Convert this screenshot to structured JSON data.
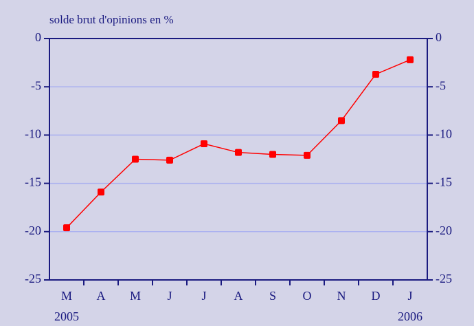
{
  "chart_data": {
    "type": "line",
    "y_label": "solde brut d'opinions en %",
    "categories": [
      "M",
      "A",
      "M",
      "J",
      "J",
      "A",
      "S",
      "O",
      "N",
      "D",
      "J"
    ],
    "year_labels": [
      "2005",
      "2006"
    ],
    "series": [
      {
        "name": "solde brut d'opinions",
        "color": "#ff0000",
        "values": [
          -19.6,
          -15.9,
          -12.5,
          -12.6,
          -10.9,
          -11.8,
          -12.0,
          -12.1,
          -8.5,
          -3.7,
          -2.2
        ]
      }
    ],
    "ylim": [
      -25,
      0
    ],
    "yticks": [
      -25,
      -20,
      -15,
      -10,
      -5,
      0
    ],
    "y2lim": [
      -25,
      0
    ],
    "y2ticks": [
      -25,
      -20,
      -15,
      -10,
      -5,
      0
    ],
    "grid": true,
    "background": "#d4d4e8",
    "grid_color": "#aab0f0",
    "axis_color": "#1a1a80"
  }
}
